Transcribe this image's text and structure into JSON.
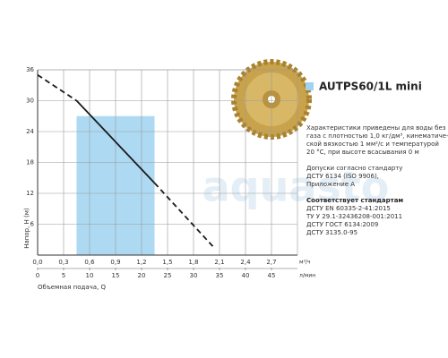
{
  "chart_data": {
    "type": "line",
    "y_label": "Напор, H (м)",
    "x_label": "Объемная подача, Q",
    "x_unit": "м³/ч",
    "x2_unit": "л/мин",
    "xlim": [
      0,
      3.0
    ],
    "ylim": [
      0,
      36
    ],
    "x2lim": [
      0,
      50
    ],
    "xticks": [
      {
        "value": 0,
        "label": "0,0"
      },
      {
        "value": 0.3,
        "label": "0,3"
      },
      {
        "value": 0.6,
        "label": "0,6"
      },
      {
        "value": 0.9,
        "label": "0,9"
      },
      {
        "value": 1.2,
        "label": "1,2"
      },
      {
        "value": 1.5,
        "label": "1,5"
      },
      {
        "value": 1.8,
        "label": "1,8"
      },
      {
        "value": 2.1,
        "label": "2,1"
      },
      {
        "value": 2.4,
        "label": "2,4"
      },
      {
        "value": 2.7,
        "label": "2,7"
      }
    ],
    "x2ticks": [
      0,
      5,
      10,
      15,
      20,
      25,
      30,
      35,
      40,
      45
    ],
    "yticks": [
      6,
      12,
      18,
      24,
      30,
      36
    ],
    "grid": true,
    "color": "#1a1a1a",
    "highlight": {
      "xlim": [
        0.45,
        1.35
      ],
      "ylim": [
        0,
        27
      ],
      "color": "#9fd3f0"
    },
    "series": [
      {
        "x": [
          0,
          0.45
        ],
        "values": [
          35,
          30
        ],
        "dash": true
      },
      {
        "x": [
          0.45,
          1.35
        ],
        "values": [
          30,
          14
        ],
        "dash": false
      },
      {
        "x": [
          1.35,
          2.05
        ],
        "values": [
          14,
          1.2
        ],
        "dash": true
      }
    ]
  },
  "product": {
    "title": "AUTPS60/1L mini",
    "lines": [
      {
        "text": "Характеристики приведены для воды без",
        "bold": false
      },
      {
        "text": "газа с плотностью 1,0 кг/дм³, кинематиче-",
        "bold": false
      },
      {
        "text": "ской вязкостью 1 мм²/с и температурой",
        "bold": false
      },
      {
        "text": "20 °С, при высоте всасывания 0 м",
        "bold": false
      },
      {
        "text": "Допуски согласно стандарту",
        "bold": false,
        "gap": true
      },
      {
        "text": "ДСТУ 6134 (ISO 9906),",
        "bold": false
      },
      {
        "text": "Приложение А",
        "bold": false
      },
      {
        "text": "Соответствует стандартам",
        "bold": true,
        "gap": true
      },
      {
        "text": "ДСТУ EN 60335-2-41:2015",
        "bold": false
      },
      {
        "text": "ТУ У 29.1-32436208-001:2011",
        "bold": false
      },
      {
        "text": "ДСТУ ГОСТ 6134:2009",
        "bold": false
      },
      {
        "text": "ДСТУ 3135.0-95",
        "bold": false
      }
    ]
  },
  "watermark": "aquasto"
}
